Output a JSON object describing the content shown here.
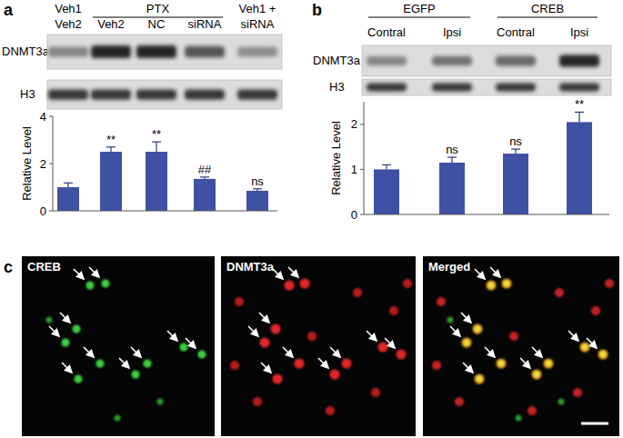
{
  "figure": {
    "panel_labels": [
      "a",
      "b",
      "c"
    ],
    "blots": [
      {
        "top_labels": [
          "Veh1",
          "PTX",
          "Veh1 +"
        ],
        "bottom_labels": [
          "Veh2",
          "Veh2",
          "NC",
          "siRNA",
          "siRNA"
        ],
        "rows": [
          "DNMT3a",
          "H3"
        ]
      },
      {
        "top_labels": [
          "EGFP",
          "CREB"
        ],
        "bottom_labels": [
          "Contral",
          "Ipsi",
          "Contral",
          "Ipsi"
        ],
        "rows": [
          "DNMT3a",
          "H3"
        ]
      }
    ],
    "micrographs": [
      "CREB",
      "DNMT3a",
      "Merged"
    ]
  },
  "chart_data": [
    {
      "type": "bar",
      "categories": [
        null,
        null,
        null,
        null,
        null
      ],
      "values": [
        1.0,
        2.5,
        2.5,
        1.35,
        0.85
      ],
      "errors": [
        0.18,
        0.2,
        0.42,
        0.08,
        0.08
      ],
      "annotations": [
        null,
        "**",
        "**",
        "##",
        "ns"
      ],
      "color": "#3f51a3",
      "y_label": "Relative Level",
      "ylim": [
        0,
        4
      ],
      "yticks": [
        0,
        2,
        4
      ]
    },
    {
      "type": "bar",
      "categories": [
        null,
        null,
        null,
        null
      ],
      "values": [
        1.0,
        1.15,
        1.35,
        2.05
      ],
      "errors": [
        0.1,
        0.12,
        0.1,
        0.22
      ],
      "annotations": [
        null,
        "ns",
        "ns",
        "**"
      ],
      "color": "#3f51a3",
      "y_label": "Relative Level",
      "ylim": [
        0,
        2.5
      ],
      "yticks": [
        0,
        1,
        2
      ]
    }
  ]
}
